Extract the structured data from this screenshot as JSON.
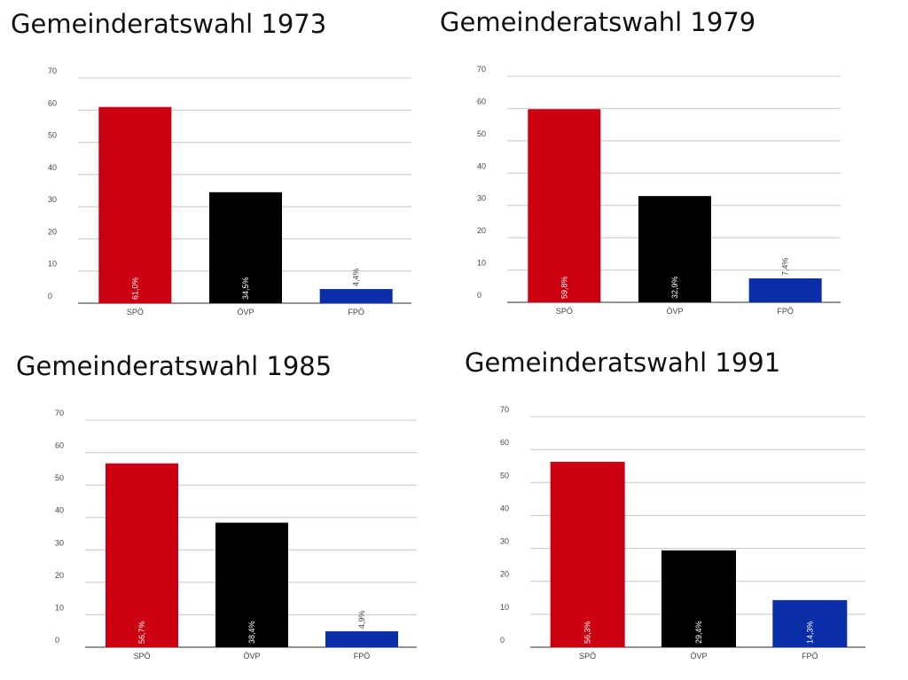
{
  "chart_data": [
    {
      "type": "bar",
      "title": "Gemeinderatswahl 1973",
      "categories": [
        "SPÖ",
        "ÖVP",
        "FPÖ"
      ],
      "values": [
        61.0,
        34.5,
        4.4
      ],
      "data_labels": [
        "61,0%",
        "34,5%",
        "4,4%"
      ],
      "colors": [
        "#cc0010",
        "#000000",
        "#0a2ea8"
      ],
      "ylim": [
        0,
        70
      ],
      "yticks": [
        "0",
        "10",
        "20",
        "30",
        "40",
        "50",
        "60",
        "70"
      ],
      "grid": true
    },
    {
      "type": "bar",
      "title": "Gemeinderatswahl 1979",
      "categories": [
        "SPÖ",
        "ÖVP",
        "FPÖ"
      ],
      "values": [
        59.8,
        32.9,
        7.4
      ],
      "data_labels": [
        "59,8%",
        "32,9%",
        "7,4%"
      ],
      "colors": [
        "#cc0010",
        "#000000",
        "#0a2ea8"
      ],
      "ylim": [
        0,
        70
      ],
      "yticks": [
        "0",
        "10",
        "20",
        "30",
        "40",
        "50",
        "60",
        "70"
      ],
      "grid": true
    },
    {
      "type": "bar",
      "title": "Gemeinderatswahl 1985",
      "categories": [
        "SPÖ",
        "ÖVP",
        "FPÖ"
      ],
      "values": [
        56.7,
        38.4,
        4.9
      ],
      "data_labels": [
        "56,7%",
        "38,4%",
        "4,9%"
      ],
      "colors": [
        "#cc0010",
        "#000000",
        "#0a2ea8"
      ],
      "ylim": [
        0,
        70
      ],
      "yticks": [
        "0",
        "10",
        "20",
        "30",
        "40",
        "50",
        "60",
        "70"
      ],
      "grid": true
    },
    {
      "type": "bar",
      "title": "Gemeinderatswahl 1991",
      "categories": [
        "SPÖ",
        "ÖVP",
        "FPÖ"
      ],
      "values": [
        56.3,
        29.4,
        14.3
      ],
      "data_labels": [
        "56,3%",
        "29,4%",
        "14,3%"
      ],
      "colors": [
        "#cc0010",
        "#000000",
        "#0a2ea8"
      ],
      "ylim": [
        0,
        70
      ],
      "yticks": [
        "0",
        "10",
        "20",
        "30",
        "40",
        "50",
        "60",
        "70"
      ],
      "grid": true
    }
  ]
}
